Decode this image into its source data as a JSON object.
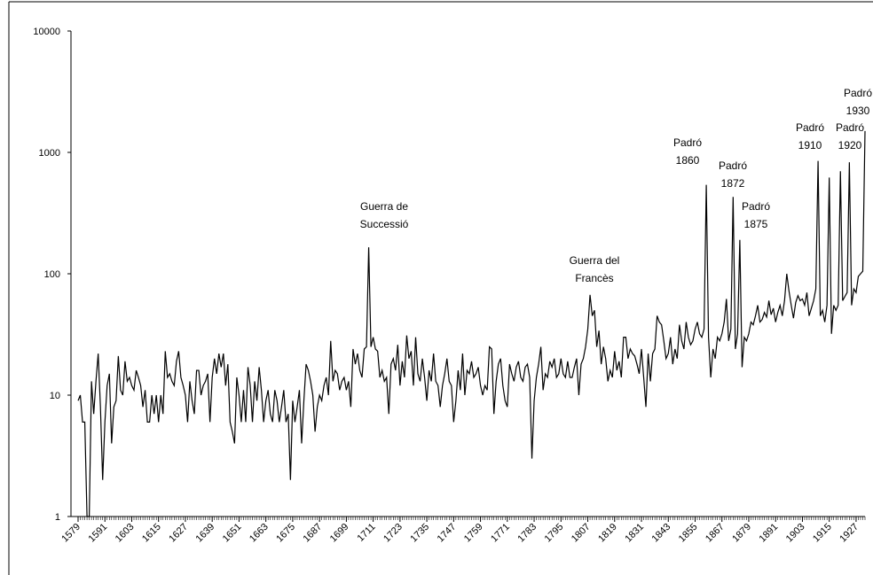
{
  "chart_data": {
    "type": "line",
    "log_y": true,
    "color": "#000000",
    "x": [
      1579,
      1580,
      1581,
      1582,
      1583,
      1584,
      1585,
      1586,
      1587,
      1588,
      1589,
      1590,
      1591,
      1592,
      1593,
      1594,
      1595,
      1596,
      1597,
      1598,
      1599,
      1600,
      1601,
      1602,
      1603,
      1604,
      1605,
      1606,
      1607,
      1608,
      1609,
      1610,
      1611,
      1612,
      1613,
      1614,
      1615,
      1616,
      1617,
      1618,
      1619,
      1620,
      1621,
      1622,
      1623,
      1624,
      1625,
      1626,
      1627,
      1628,
      1629,
      1630,
      1631,
      1632,
      1633,
      1634,
      1635,
      1636,
      1637,
      1638,
      1639,
      1640,
      1641,
      1642,
      1643,
      1644,
      1645,
      1646,
      1647,
      1648,
      1649,
      1650,
      1651,
      1652,
      1653,
      1654,
      1655,
      1656,
      1657,
      1658,
      1659,
      1660,
      1661,
      1662,
      1663,
      1664,
      1665,
      1666,
      1667,
      1668,
      1669,
      1670,
      1671,
      1672,
      1673,
      1674,
      1675,
      1676,
      1677,
      1678,
      1679,
      1680,
      1681,
      1682,
      1683,
      1684,
      1685,
      1686,
      1687,
      1688,
      1689,
      1690,
      1691,
      1692,
      1693,
      1694,
      1695,
      1696,
      1697,
      1698,
      1699,
      1700,
      1701,
      1702,
      1703,
      1704,
      1705,
      1706,
      1707,
      1708,
      1709,
      1710,
      1711,
      1712,
      1713,
      1714,
      1715,
      1716,
      1717,
      1718,
      1719,
      1720,
      1721,
      1722,
      1723,
      1724,
      1725,
      1726,
      1727,
      1728,
      1729,
      1730,
      1731,
      1732,
      1733,
      1734,
      1735,
      1736,
      1737,
      1738,
      1739,
      1740,
      1741,
      1742,
      1743,
      1744,
      1745,
      1746,
      1747,
      1748,
      1749,
      1750,
      1751,
      1752,
      1753,
      1754,
      1755,
      1756,
      1757,
      1758,
      1759,
      1760,
      1761,
      1762,
      1763,
      1764,
      1765,
      1766,
      1767,
      1768,
      1769,
      1770,
      1771,
      1772,
      1773,
      1774,
      1775,
      1776,
      1777,
      1778,
      1779,
      1780,
      1781,
      1782,
      1783,
      1784,
      1785,
      1786,
      1787,
      1788,
      1789,
      1790,
      1791,
      1792,
      1793,
      1794,
      1795,
      1796,
      1797,
      1798,
      1799,
      1800,
      1801,
      1802,
      1803,
      1804,
      1805,
      1806,
      1807,
      1808,
      1809,
      1810,
      1811,
      1812,
      1813,
      1814,
      1815,
      1816,
      1817,
      1818,
      1819,
      1820,
      1821,
      1822,
      1823,
      1824,
      1825,
      1826,
      1827,
      1828,
      1829,
      1830,
      1831,
      1832,
      1833,
      1834,
      1835,
      1836,
      1837,
      1838,
      1839,
      1840,
      1841,
      1842,
      1843,
      1844,
      1845,
      1846,
      1847,
      1848,
      1849,
      1850,
      1851,
      1852,
      1853,
      1854,
      1855,
      1856,
      1857,
      1858,
      1859,
      1860,
      1861,
      1862,
      1863,
      1864,
      1865,
      1866,
      1867,
      1868,
      1869,
      1870,
      1871,
      1872,
      1873,
      1874,
      1875,
      1876,
      1877,
      1878,
      1879,
      1880,
      1881,
      1882,
      1883,
      1884,
      1885,
      1886,
      1887,
      1888,
      1889,
      1890,
      1891,
      1892,
      1893,
      1894,
      1895,
      1896,
      1897,
      1898,
      1899,
      1900,
      1901,
      1902,
      1903,
      1904,
      1905,
      1906,
      1907,
      1908,
      1909,
      1910,
      1911,
      1912,
      1913,
      1914,
      1915,
      1916,
      1917,
      1918,
      1919,
      1920,
      1921,
      1922,
      1923,
      1924,
      1925,
      1926,
      1927,
      1928,
      1929,
      1930,
      1931
    ],
    "values": [
      9,
      10,
      6,
      6,
      1,
      1,
      13,
      7,
      13,
      22,
      8,
      2,
      6,
      12,
      15,
      4,
      8,
      9,
      21,
      11,
      10,
      19,
      13,
      14,
      12,
      11,
      16,
      14,
      12,
      8,
      11,
      6,
      6,
      10,
      7,
      10,
      6,
      10,
      7,
      23,
      14,
      15,
      13,
      12,
      19,
      23,
      14,
      12,
      10,
      6,
      13,
      9,
      7,
      16,
      16,
      10,
      12,
      13,
      15,
      6,
      14,
      20,
      15,
      22,
      17,
      22,
      12,
      18,
      6,
      5,
      4,
      14,
      10,
      6,
      11,
      6,
      17,
      12,
      6,
      13,
      9,
      17,
      11,
      6,
      9,
      11,
      7,
      6,
      11,
      9,
      6,
      8,
      11,
      6,
      7,
      2,
      9,
      6,
      8,
      11,
      4,
      9,
      18,
      16,
      13,
      10,
      5,
      8,
      10,
      9,
      12,
      14,
      10,
      28,
      13,
      16,
      15,
      11,
      13,
      14,
      11,
      13,
      8,
      24,
      18,
      22,
      16,
      14,
      24,
      25,
      165,
      25,
      30,
      24,
      23,
      14,
      16,
      13,
      14,
      7,
      18,
      20,
      16,
      26,
      12,
      19,
      14,
      31,
      20,
      23,
      12,
      30,
      15,
      13,
      20,
      14,
      9,
      16,
      13,
      22,
      13,
      12,
      8,
      12,
      15,
      20,
      13,
      12,
      6,
      9,
      16,
      11,
      22,
      10,
      16,
      15,
      19,
      14,
      15,
      17,
      12,
      10,
      12,
      11,
      25,
      24,
      7,
      13,
      18,
      20,
      12,
      9,
      8,
      18,
      15,
      13,
      17,
      19,
      14,
      13,
      17,
      18,
      14,
      3,
      9,
      14,
      18,
      25,
      11,
      15,
      14,
      19,
      17,
      20,
      14,
      15,
      20,
      15,
      14,
      19,
      14,
      14,
      17,
      20,
      10,
      18,
      20,
      25,
      35,
      67,
      45,
      50,
      25,
      34,
      18,
      25,
      20,
      13,
      16,
      14,
      23,
      16,
      19,
      14,
      30,
      30,
      20,
      24,
      22,
      21,
      18,
      15,
      24,
      14,
      8,
      22,
      13,
      22,
      24,
      45,
      40,
      38,
      28,
      20,
      22,
      30,
      18,
      24,
      20,
      38,
      28,
      24,
      40,
      30,
      26,
      28,
      35,
      40,
      32,
      30,
      35,
      540,
      30,
      14,
      24,
      20,
      30,
      28,
      32,
      40,
      62,
      28,
      35,
      430,
      24,
      32,
      190,
      17,
      30,
      28,
      32,
      40,
      38,
      45,
      55,
      40,
      42,
      48,
      44,
      60,
      46,
      52,
      40,
      48,
      55,
      45,
      60,
      100,
      72,
      55,
      43,
      58,
      66,
      60,
      62,
      55,
      70,
      45,
      52,
      60,
      75,
      850,
      45,
      50,
      40,
      55,
      620,
      32,
      55,
      50,
      55,
      700,
      60,
      65,
      70,
      830,
      55,
      75,
      70,
      95,
      100,
      105,
      1500
    ],
    "xlim": [
      1579,
      1931
    ],
    "xticks": [
      1579,
      1591,
      1603,
      1615,
      1627,
      1639,
      1651,
      1663,
      1675,
      1687,
      1699,
      1711,
      1723,
      1735,
      1747,
      1759,
      1771,
      1783,
      1795,
      1807,
      1819,
      1831,
      1843,
      1855,
      1867,
      1879,
      1891,
      1903,
      1915,
      1927
    ],
    "ylim": [
      1,
      10000
    ],
    "yticks": [
      1,
      10,
      100,
      1000,
      10000
    ],
    "annotations": [
      [
        "Guerra de",
        "Successió"
      ],
      [
        "Guerra del",
        "Francès"
      ],
      [
        "Padró",
        "1860"
      ],
      [
        "Padró",
        "1872"
      ],
      [
        "Padró",
        "1875"
      ],
      [
        "Padró",
        "1910"
      ],
      [
        "Padró",
        "1920"
      ],
      [
        "Padró",
        "1930"
      ]
    ]
  }
}
